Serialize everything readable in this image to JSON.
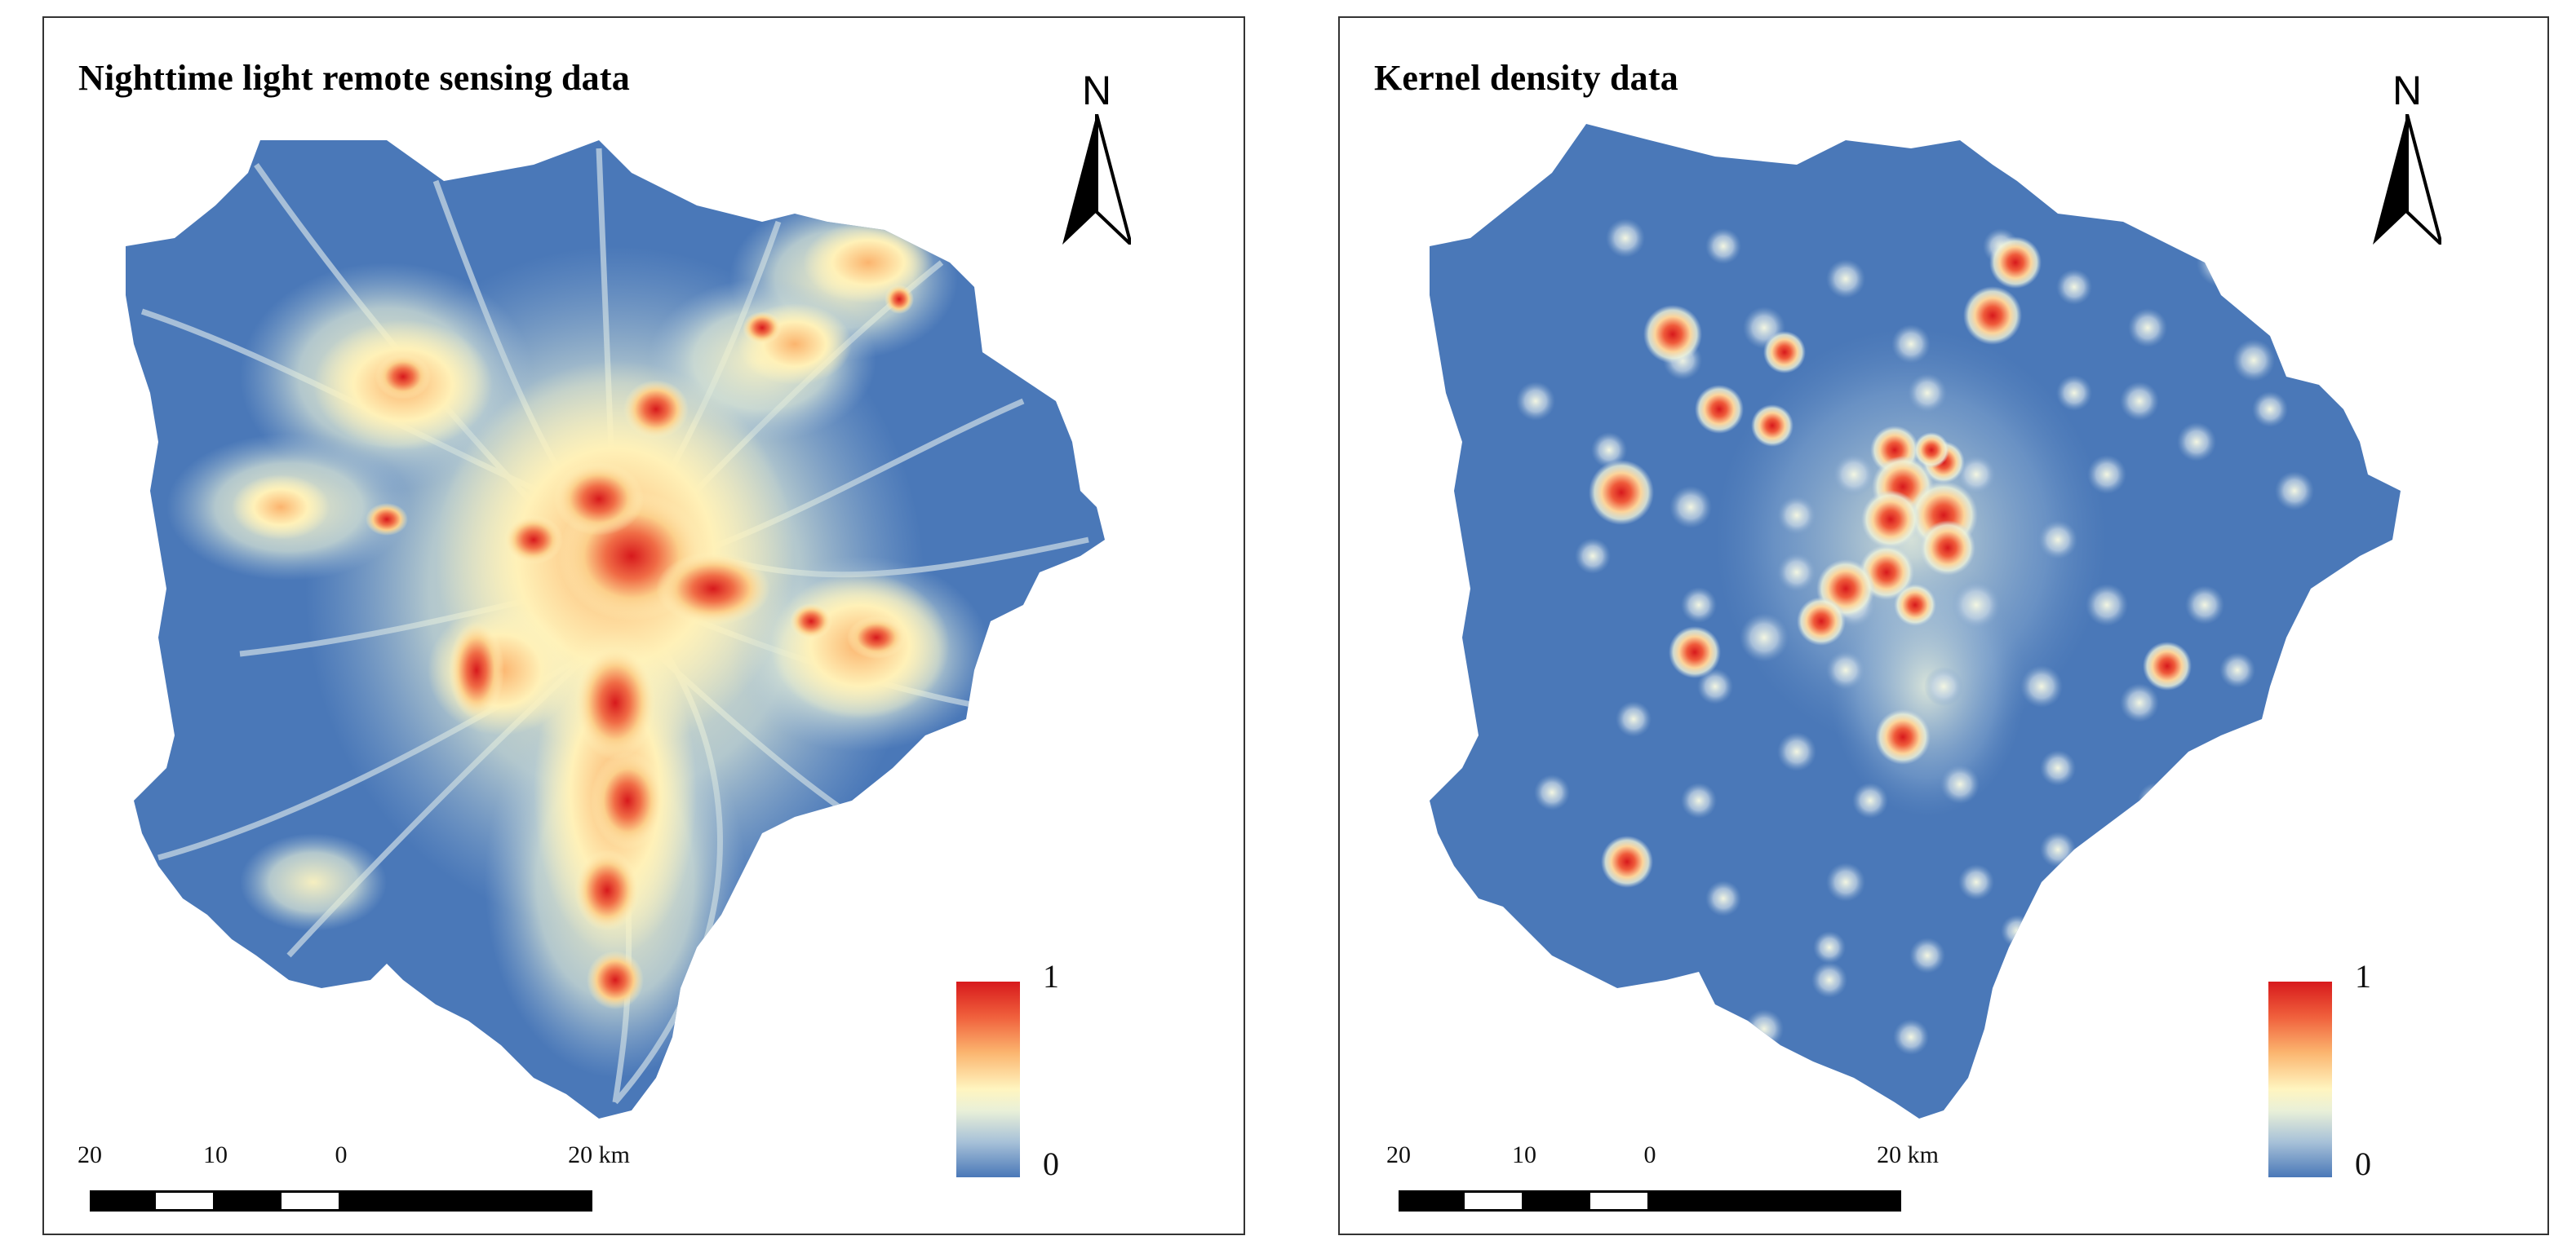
{
  "panels": [
    {
      "id": "nighttime-light",
      "title": "Nighttime light remote sensing data",
      "north_label": "N",
      "legend": {
        "max_label": "1",
        "min_label": "0"
      },
      "scale": {
        "ticks": [
          "20",
          "10",
          "0",
          "20 km"
        ]
      }
    },
    {
      "id": "kernel-density",
      "title": "Kernel density data",
      "north_label": "N",
      "legend": {
        "max_label": "1",
        "min_label": "0"
      },
      "scale": {
        "ticks": [
          "20",
          "10",
          "0",
          "20 km"
        ]
      }
    }
  ],
  "colors": {
    "low": "#4a78b8",
    "mid": "#fff5c0",
    "high": "#d7191c",
    "frame": "#333333"
  }
}
